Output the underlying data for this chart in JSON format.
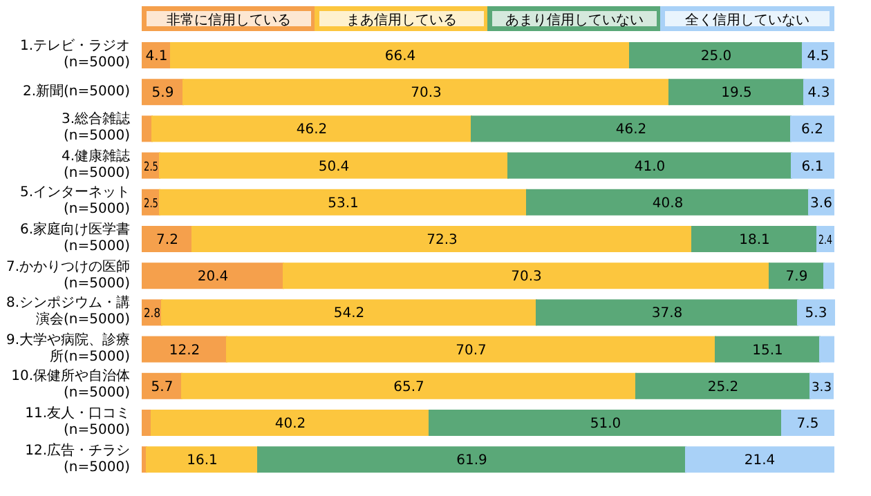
{
  "chart_data": {
    "type": "bar",
    "orientation": "horizontal",
    "stacked": true,
    "legend": "top",
    "xlim": [
      0,
      100
    ],
    "categories": [
      "1.テレビ・ラジオ(n=5000)",
      "2.新聞(n=5000)",
      "3.総合雑誌(n=5000)",
      "4.健康雑誌(n=5000)",
      "5.インターネット(n=5000)",
      "6.家庭向け医学書(n=5000)",
      "7.かかりつけの医師(n=5000)",
      "8.シンポジウム・講演会(n=5000)",
      "9.大学や病院、診療所(n=5000)",
      "10.保健所や自治体(n=5000)",
      "11.友人・口コミ(n=5000)",
      "12.広告・チラシ(n=5000)"
    ],
    "series": [
      {
        "name": "非常に信用している",
        "color": "#f5a04c",
        "values": [
          4.1,
          5.9,
          1.4,
          2.5,
          2.5,
          7.2,
          20.4,
          2.8,
          12.2,
          5.7,
          1.3,
          0.6
        ],
        "value_labels": [
          "4.1",
          "5.9",
          null,
          "2.5",
          "2.5",
          "7.2",
          "20.4",
          "2.8",
          "12.2",
          "5.7",
          null,
          null
        ]
      },
      {
        "name": "まあ信用している",
        "color": "#fcc63e",
        "values": [
          66.4,
          70.3,
          46.2,
          50.4,
          53.1,
          72.3,
          70.3,
          54.2,
          70.7,
          65.7,
          40.2,
          16.1
        ],
        "value_labels": [
          "66.4",
          "70.3",
          "46.2",
          "50.4",
          "53.1",
          "72.3",
          "70.3",
          "54.2",
          "70.7",
          "65.7",
          "40.2",
          "16.1"
        ]
      },
      {
        "name": "あまり信用していない",
        "color": "#5aa878",
        "values": [
          25.0,
          19.5,
          46.2,
          41.0,
          40.8,
          18.1,
          7.9,
          37.8,
          15.1,
          25.2,
          51.0,
          61.9
        ],
        "value_labels": [
          "25.0",
          "19.5",
          "46.2",
          "41.0",
          "40.8",
          "18.1",
          "7.9",
          "37.8",
          "15.1",
          "25.2",
          "51.0",
          "61.9"
        ]
      },
      {
        "name": "全く信用していない",
        "color": "#a9d1f7",
        "values": [
          4.5,
          4.3,
          6.2,
          6.1,
          3.6,
          2.4,
          1.4,
          5.3,
          2.0,
          3.3,
          7.5,
          21.4
        ],
        "value_labels": [
          "4.5",
          "4.3",
          "6.2",
          "6.1",
          "3.6",
          "2.4",
          null,
          "5.3",
          null,
          "3.3",
          "7.5",
          "21.4"
        ]
      }
    ]
  }
}
